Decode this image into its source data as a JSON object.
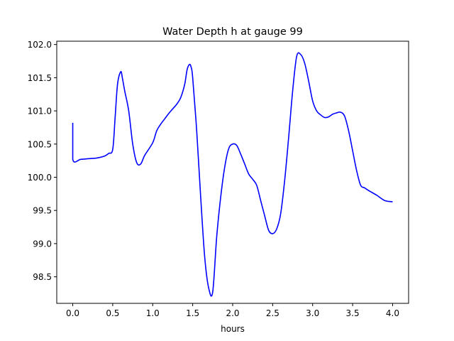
{
  "chart_data": {
    "type": "line",
    "title": "Water Depth h at gauge 99",
    "xlabel": "hours",
    "ylabel": "",
    "xlim": [
      -0.2,
      4.2
    ],
    "ylim": [
      98.1,
      102.05
    ],
    "xticks": [
      0.0,
      0.5,
      1.0,
      1.5,
      2.0,
      2.5,
      3.0,
      3.5,
      4.0
    ],
    "xtick_labels": [
      "0.0",
      "0.5",
      "1.0",
      "1.5",
      "2.0",
      "2.5",
      "3.0",
      "3.5",
      "4.0"
    ],
    "yticks": [
      98.5,
      99.0,
      99.5,
      100.0,
      100.5,
      101.0,
      101.5,
      102.0
    ],
    "ytick_labels": [
      "98.5",
      "99.0",
      "99.5",
      "100.0",
      "100.5",
      "101.0",
      "101.5",
      "102.0"
    ],
    "grid": false,
    "series": [
      {
        "color": "#0000ff",
        "x": [
          0.0,
          0.0,
          0.1,
          0.2,
          0.3,
          0.4,
          0.45,
          0.5,
          0.53,
          0.56,
          0.6,
          0.62,
          0.65,
          0.7,
          0.75,
          0.8,
          0.85,
          0.9,
          1.0,
          1.05,
          1.1,
          1.15,
          1.2,
          1.25,
          1.3,
          1.35,
          1.4,
          1.43,
          1.46,
          1.48,
          1.5,
          1.55,
          1.6,
          1.65,
          1.7,
          1.75,
          1.8,
          1.85,
          1.9,
          1.95,
          2.0,
          2.05,
          2.1,
          2.15,
          2.2,
          2.25,
          2.3,
          2.35,
          2.4,
          2.45,
          2.5,
          2.55,
          2.6,
          2.65,
          2.7,
          2.75,
          2.8,
          2.85,
          2.9,
          2.95,
          3.0,
          3.05,
          3.1,
          3.15,
          3.2,
          3.25,
          3.3,
          3.35,
          3.4,
          3.45,
          3.5,
          3.55,
          3.6,
          3.65,
          3.7,
          3.8,
          3.9,
          4.0
        ],
        "y": [
          100.82,
          100.27,
          100.27,
          100.28,
          100.29,
          100.32,
          100.36,
          100.42,
          100.9,
          101.4,
          101.59,
          101.5,
          101.3,
          101.0,
          100.5,
          100.22,
          100.2,
          100.33,
          100.52,
          100.7,
          100.8,
          100.88,
          100.96,
          101.03,
          101.1,
          101.2,
          101.4,
          101.62,
          101.7,
          101.66,
          101.5,
          100.7,
          99.7,
          98.8,
          98.33,
          98.27,
          99.1,
          99.7,
          100.15,
          100.43,
          100.5,
          100.48,
          100.35,
          100.2,
          100.05,
          99.97,
          99.88,
          99.65,
          99.42,
          99.2,
          99.15,
          99.22,
          99.45,
          99.95,
          100.6,
          101.3,
          101.82,
          101.85,
          101.72,
          101.45,
          101.15,
          101.0,
          100.94,
          100.9,
          100.91,
          100.95,
          100.97,
          100.98,
          100.92,
          100.7,
          100.4,
          100.1,
          99.88,
          99.84,
          99.8,
          99.73,
          99.65,
          99.63
        ]
      }
    ]
  }
}
